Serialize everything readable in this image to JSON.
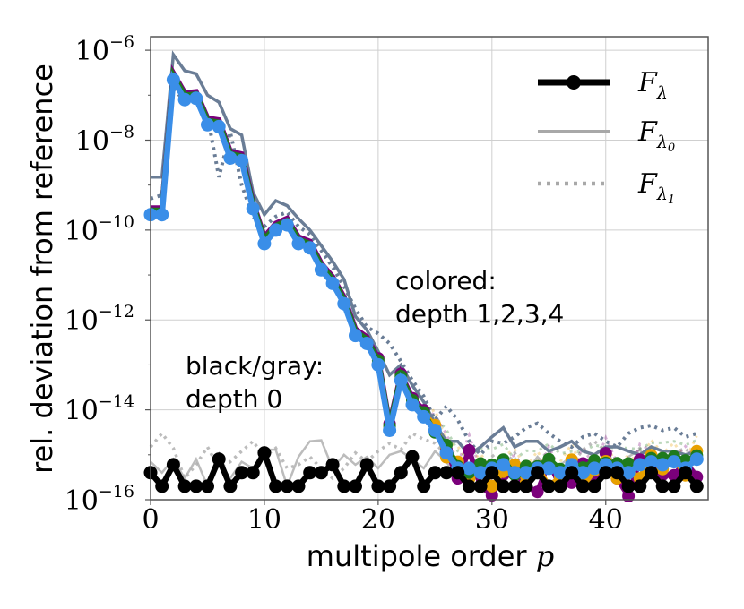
{
  "chart_data": {
    "type": "line",
    "xlabel_text": "multipole order ",
    "xlabel_var": "p",
    "ylabel": "rel. deviation from reference",
    "xlim": [
      0,
      49
    ],
    "ylim": [
      1e-16,
      2e-06
    ],
    "yscale": "log",
    "grid": true,
    "x_ticks": [
      "0",
      "10",
      "20",
      "30",
      "40"
    ],
    "y_ticks": [
      {
        "base": "10",
        "exp": "−6"
      },
      {
        "base": "10",
        "exp": "−8"
      },
      {
        "base": "10",
        "exp": "−10"
      },
      {
        "base": "10",
        "exp": "−12"
      },
      {
        "base": "10",
        "exp": "−14"
      },
      {
        "base": "10",
        "exp": "−16"
      }
    ],
    "legend": {
      "position": "top-right",
      "entries": [
        {
          "sym": "F",
          "sub": "λ",
          "subsub": "",
          "style": "marker"
        },
        {
          "sym": "F",
          "sub": "λ",
          "subsub": "0",
          "style": "solid"
        },
        {
          "sym": "F",
          "sub": "λ",
          "subsub": "1",
          "style": "dotted"
        }
      ]
    },
    "annotations": {
      "colored_line1": "colored:",
      "colored_line2": "depth 1,2,3,4",
      "black_line1": "black/gray:",
      "black_line2": "depth 0"
    },
    "series_depth0": {
      "F_lambda": [
        4e-16,
        2e-16,
        6e-16,
        2e-16,
        2e-16,
        2e-16,
        8e-16,
        2e-16,
        4e-16,
        4e-16,
        1.1e-15,
        2e-16,
        2e-16,
        2e-16,
        4e-16,
        4e-16,
        6e-16,
        2e-16,
        2e-16,
        6e-16,
        2e-16,
        2e-16,
        4e-16,
        9e-16,
        2e-16,
        4e-16,
        4e-16,
        4e-16,
        2e-16,
        2e-16,
        4e-16,
        2e-16,
        2e-16,
        2e-16,
        4e-16,
        2e-16,
        2e-16,
        4e-16,
        2e-16,
        2e-16,
        4e-16,
        4e-16,
        2e-16,
        2e-16,
        4e-16,
        2e-16,
        2e-16,
        4e-16,
        2e-16
      ],
      "F_lambda0": [
        7e-16,
        4e-16,
        8e-16,
        3e-16,
        8e-16,
        2e-16,
        7e-16,
        3e-16,
        7e-16,
        5e-16,
        1.3e-15,
        1.3e-15,
        2e-16,
        9e-16,
        2e-15,
        2.1e-15,
        5e-16,
        1e-15,
        6e-16,
        9e-16,
        5e-16,
        1e-15,
        1.2e-15,
        8e-16,
        5e-16,
        1.2e-15,
        7e-16,
        3e-16,
        6e-16,
        3e-16,
        4e-16,
        8e-16,
        2e-16,
        4e-16,
        9e-16,
        5e-16,
        6e-16,
        9e-16,
        2e-16,
        7e-16,
        4e-16,
        3e-16,
        9e-16,
        1.3e-15,
        4e-16,
        6e-16,
        3e-16,
        7e-16,
        4e-16
      ],
      "F_lambda1": [
        1.5e-15,
        3e-15,
        1.4e-15,
        3e-16,
        6e-16,
        1.5e-15,
        5e-16,
        7e-16,
        1.2e-15,
        2e-15,
        9e-16,
        1.4e-15,
        5e-16,
        6e-16,
        9e-16,
        5e-16,
        3e-16,
        5e-16,
        1.1e-15,
        7e-16,
        1.2e-15,
        1.8e-15,
        1.3e-15,
        3e-15,
        2.2e-15,
        1.8e-15,
        1e-15,
        4e-16,
        5e-16,
        3e-16,
        1e-15,
        5e-16,
        1.1e-15,
        3e-16,
        7e-16,
        1.2e-15,
        4e-16,
        6e-16,
        1.3e-15,
        2e-15,
        1.2e-15,
        5e-16,
        7e-16,
        1.4e-15,
        8e-16,
        5e-16,
        1.1e-15,
        1.4e-15,
        7e-16
      ]
    },
    "series_colored": {
      "colors": [
        "#7b007b",
        "#e8a000",
        "#1e7a1e",
        "#3a8ee8"
      ],
      "F_lambda_blue": [
        2.2e-10,
        2.2e-10,
        2.2e-07,
        8e-08,
        8.5e-08,
        2.2e-08,
        2e-08,
        4e-09,
        3.5e-09,
        3e-10,
        5e-11,
        1e-10,
        1.3e-10,
        5e-11,
        4e-11,
        1.3e-11,
        6.5e-12,
        2.3e-12,
        4.5e-13,
        3e-13,
        1e-13,
        3.5e-15,
        4.5e-14,
        1.3e-14,
        7e-15,
        3.5e-15,
        1.1e-15,
        5e-16,
        5e-16,
        4e-16,
        5e-16,
        6e-16,
        4e-16,
        4e-16,
        5e-16,
        5e-16,
        4e-16,
        6e-16,
        4e-16,
        5e-16,
        6e-16,
        5e-16,
        4e-16,
        6e-16,
        7e-16,
        6e-16,
        7e-16,
        5e-16,
        8e-16
      ],
      "F_lambda0_blue": [
        1.5e-09,
        1.5e-09,
        8e-07,
        3.5e-07,
        3e-07,
        1e-07,
        7e-08,
        1.8e-08,
        1.3e-08,
        7e-10,
        2.2e-10,
        4.5e-10,
        3.5e-10,
        1.8e-10,
        1e-10,
        4.5e-11,
        2e-11,
        8e-12,
        1.2e-12,
        6e-13,
        2e-13,
        6e-14,
        1e-13,
        3.5e-14,
        1.5e-14,
        5e-15,
        2e-15,
        2e-15,
        1e-15,
        1.5e-15,
        2.5e-15,
        4e-15,
        1.5e-15,
        2e-15,
        2e-15,
        1.2e-15,
        1.5e-15,
        2e-15,
        1.2e-15,
        1e-15,
        1.5e-15,
        1.5e-15,
        1.2e-15,
        1e-15,
        1.5e-15,
        1.2e-15,
        1.2e-15,
        1e-15,
        1.2e-15
      ],
      "F_lambda1_blue": [
        5e-10,
        6e-10,
        1.5e-07,
        7e-08,
        1e-07,
        3.5e-08,
        1.5e-09,
        1.5e-08,
        1e-09,
        2e-10,
        1.2e-10,
        2e-10,
        2.5e-10,
        1.2e-10,
        8e-11,
        3.5e-11,
        1.5e-11,
        5.5e-12,
        1.8e-12,
        7e-13,
        5e-13,
        3e-13,
        1.2e-13,
        4.5e-14,
        2e-14,
        6e-15,
        1.2e-14,
        6e-15,
        2e-15,
        1e-15,
        2e-15,
        1.8e-15,
        2.5e-15,
        4e-15,
        5e-15,
        3e-15,
        2e-15,
        1.5e-15,
        2.5e-15,
        3e-15,
        2e-15,
        1.5e-15,
        3e-15,
        4e-15,
        4.5e-15,
        3.5e-15,
        4e-15,
        2.5e-15,
        3e-15
      ]
    }
  }
}
